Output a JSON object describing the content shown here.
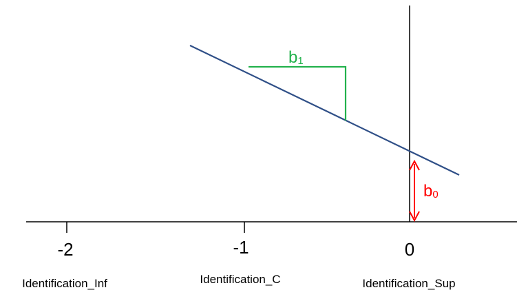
{
  "diagram": {
    "ticks": [
      {
        "label": "-2",
        "category": "Identification_Inf"
      },
      {
        "label": "-1",
        "category": "Identification_C"
      },
      {
        "label": "0",
        "category": "Identification_Sup"
      }
    ],
    "annotations": {
      "slope": {
        "base": "b",
        "sub": "1"
      },
      "intercept": {
        "base": "b",
        "sub": "0"
      }
    },
    "colors": {
      "axis": "#000000",
      "regression_line": "#2f4f87",
      "slope_marker": "#22b14c",
      "intercept_marker": "#ff0000"
    }
  }
}
